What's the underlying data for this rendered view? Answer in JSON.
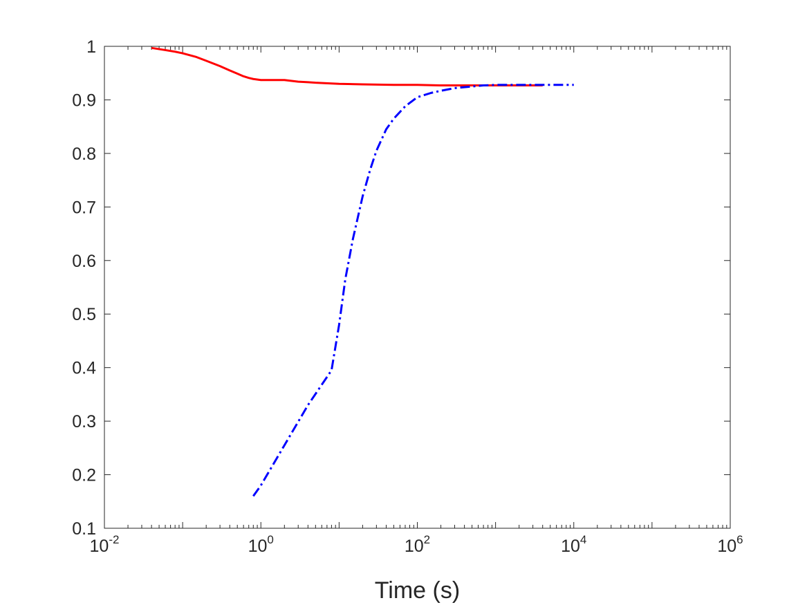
{
  "chart_data": {
    "type": "line",
    "title": "",
    "xlabel": "Time (s)",
    "ylabel": "",
    "xscale": "log",
    "xlim": [
      0.01,
      1000000
    ],
    "ylim": [
      0.1,
      1
    ],
    "grid": false,
    "box": true,
    "legend": "none",
    "x_ticks": [
      {
        "value": 0.01,
        "base": "10",
        "exp": "-2"
      },
      {
        "value": 1,
        "base": "10",
        "exp": "0"
      },
      {
        "value": 100,
        "base": "10",
        "exp": "2"
      },
      {
        "value": 10000,
        "base": "10",
        "exp": "4"
      },
      {
        "value": 1000000,
        "base": "10",
        "exp": "6"
      }
    ],
    "y_ticks": [
      {
        "value": 0.1,
        "label": "0.1"
      },
      {
        "value": 0.2,
        "label": "0.2"
      },
      {
        "value": 0.3,
        "label": "0.3"
      },
      {
        "value": 0.4,
        "label": "0.4"
      },
      {
        "value": 0.5,
        "label": "0.5"
      },
      {
        "value": 0.6,
        "label": "0.6"
      },
      {
        "value": 0.7,
        "label": "0.7"
      },
      {
        "value": 0.8,
        "label": "0.8"
      },
      {
        "value": 0.9,
        "label": "0.9"
      },
      {
        "value": 1,
        "label": "1"
      }
    ],
    "series": [
      {
        "color": "#ff0000",
        "style": "solid",
        "x": [
          0.04,
          0.06,
          0.08,
          0.1,
          0.15,
          0.2,
          0.3,
          0.4,
          0.5,
          0.6,
          0.7,
          0.8,
          1,
          1.5,
          2,
          3,
          4,
          5,
          10,
          20,
          50,
          100,
          200,
          500,
          1000,
          4000
        ],
        "y": [
          0.997,
          0.993,
          0.99,
          0.987,
          0.98,
          0.973,
          0.963,
          0.955,
          0.949,
          0.944,
          0.941,
          0.939,
          0.937,
          0.937,
          0.937,
          0.934,
          0.933,
          0.932,
          0.93,
          0.929,
          0.928,
          0.928,
          0.927,
          0.927,
          0.927,
          0.927
        ]
      },
      {
        "color": "#0000ff",
        "style": "dashdot",
        "x": [
          0.8,
          1,
          2,
          4,
          8,
          10,
          12,
          15,
          20,
          25,
          30,
          40,
          50,
          70,
          100,
          150,
          200,
          300,
          500,
          700,
          1000,
          2000,
          5000,
          10000
        ],
        "y": [
          0.16,
          0.18,
          0.255,
          0.33,
          0.395,
          0.48,
          0.565,
          0.64,
          0.72,
          0.77,
          0.805,
          0.845,
          0.865,
          0.888,
          0.905,
          0.913,
          0.917,
          0.922,
          0.925,
          0.927,
          0.928,
          0.928,
          0.928,
          0.928
        ]
      }
    ]
  }
}
